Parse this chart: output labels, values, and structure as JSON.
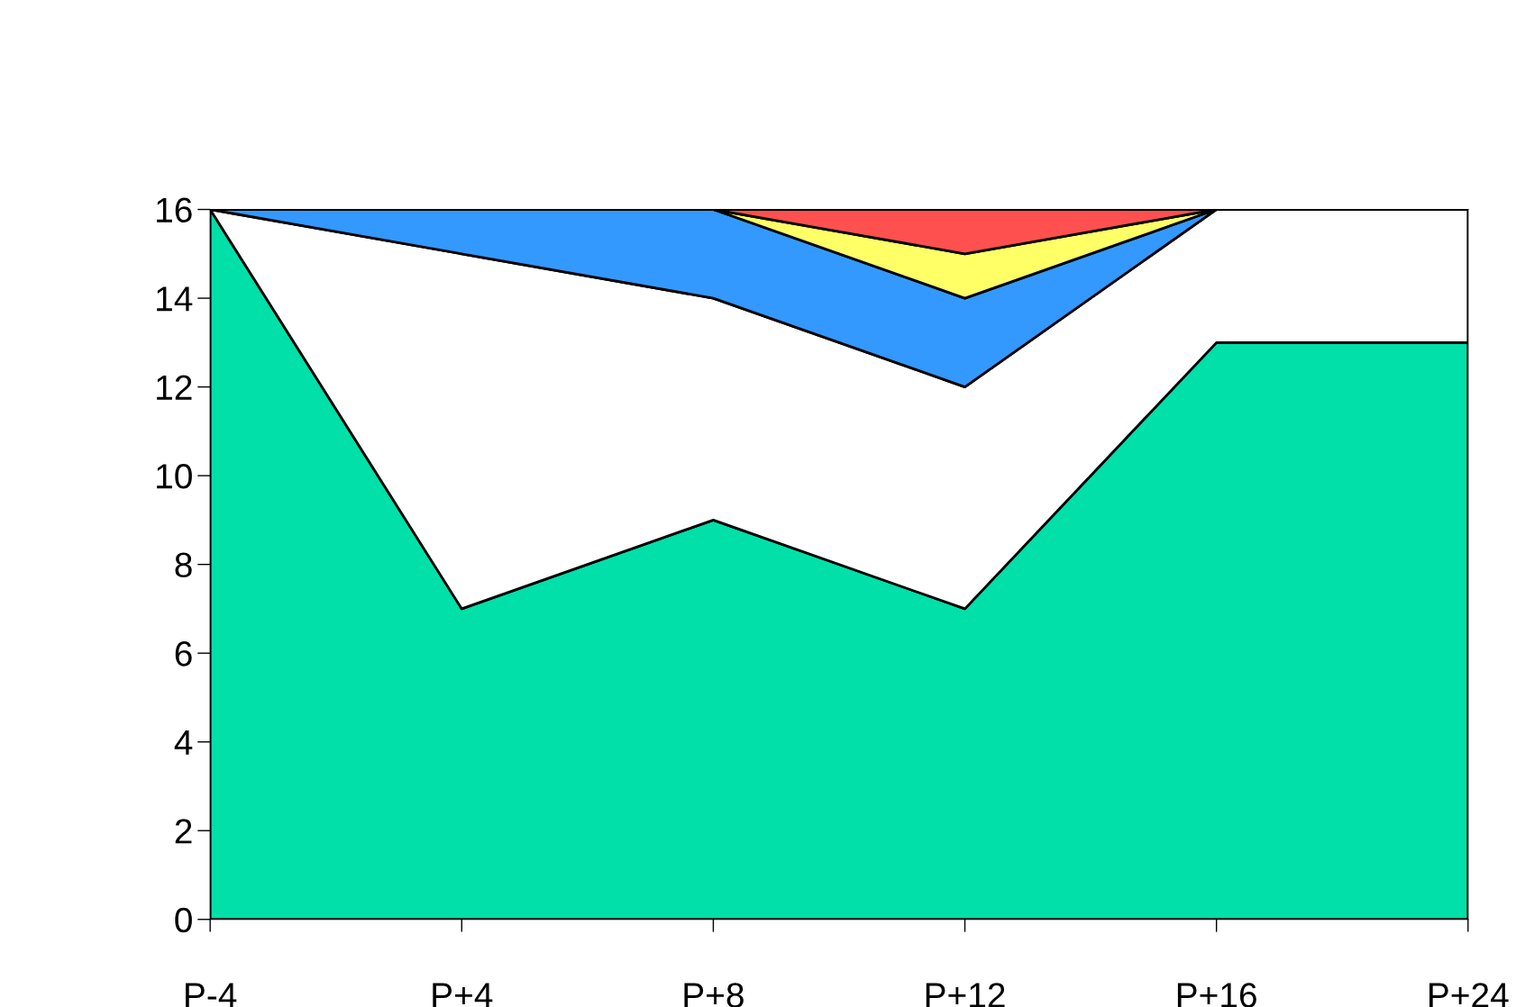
{
  "chart_data": {
    "type": "area",
    "stacked": true,
    "categories": [
      "P-4",
      "P+4",
      "P+8",
      "P+12",
      "P+16",
      "P+24"
    ],
    "series": [
      {
        "color": "#00e0a8",
        "values": [
          16,
          7,
          9,
          7,
          13,
          13
        ]
      },
      {
        "color": "#ffffff",
        "values": [
          0,
          8,
          5,
          5,
          3,
          3
        ]
      },
      {
        "color": "#3399ff",
        "values": [
          0,
          1,
          2,
          2,
          0,
          0
        ]
      },
      {
        "color": "#ffff66",
        "values": [
          0,
          0,
          0,
          1,
          0,
          0
        ]
      },
      {
        "color": "#ff5050",
        "values": [
          0,
          0,
          0,
          1,
          0,
          0
        ]
      }
    ],
    "ylim": [
      0,
      16
    ],
    "yticks": [
      0,
      2,
      4,
      6,
      8,
      10,
      12,
      14,
      16
    ],
    "grid": false,
    "legend": false
  }
}
